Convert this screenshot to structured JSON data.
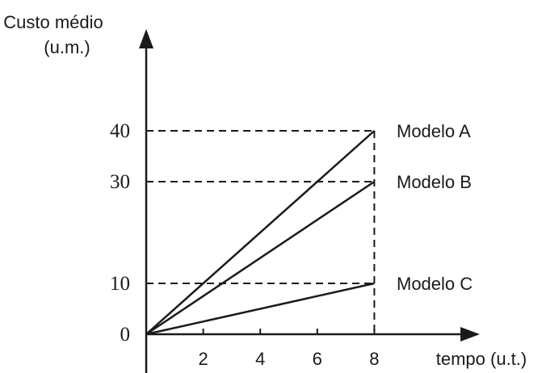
{
  "chart_data": {
    "type": "line",
    "ylabel_line1": "Custo médio",
    "ylabel_line2": "(u.m.)",
    "xlabel": "tempo (u.t.)",
    "x_ticks": [
      2,
      4,
      6,
      8
    ],
    "y_ticks": [
      0,
      10,
      30,
      40
    ],
    "xlim": [
      0,
      9.5
    ],
    "ylim": [
      0,
      55
    ],
    "series": [
      {
        "name": "Modelo A",
        "x": [
          0,
          8
        ],
        "y": [
          0,
          40
        ]
      },
      {
        "name": "Modelo B",
        "x": [
          0,
          8
        ],
        "y": [
          0,
          30
        ]
      },
      {
        "name": "Modelo C",
        "x": [
          0,
          8
        ],
        "y": [
          0,
          10
        ]
      }
    ],
    "grid": false,
    "legend": "inline-right",
    "colors": {
      "line": "#1a1a1a"
    }
  }
}
